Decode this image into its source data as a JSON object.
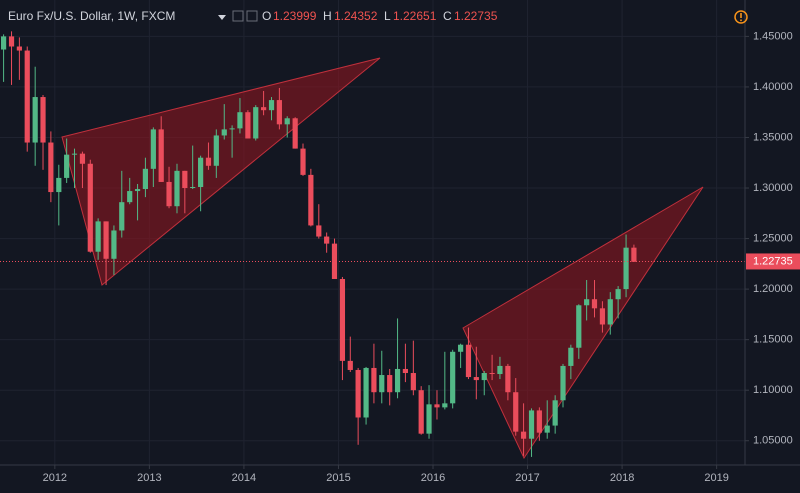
{
  "chart_data": {
    "type": "candlestick",
    "header": {
      "symbol": "Euro Fx/U.S. Dollar, 1W, FXCM",
      "o_label": "O",
      "open": 1.23999,
      "h_label": "H",
      "high": 1.24352,
      "l_label": "L",
      "low": 1.22651,
      "c_label": "C",
      "close": 1.22735
    },
    "up_color": "#53b987",
    "down_color": "#eb4d5c",
    "grid": true,
    "xlim": [
      2011.42,
      2019.3
    ],
    "xticks": [
      2012,
      2013,
      2014,
      2015,
      2016,
      2017,
      2018,
      2019
    ],
    "ylim": [
      1.026,
      1.486
    ],
    "yticks": [
      {
        "value": 1.05,
        "label": "1.05000"
      },
      {
        "value": 1.1,
        "label": "1.10000"
      },
      {
        "value": 1.15,
        "label": "1.15000"
      },
      {
        "value": 1.2,
        "label": "1.20000"
      },
      {
        "value": 1.25,
        "label": "1.25000"
      },
      {
        "value": 1.3,
        "label": "1.30000"
      },
      {
        "value": 1.35,
        "label": "1.35000"
      },
      {
        "value": 1.4,
        "label": "1.40000"
      },
      {
        "value": 1.45,
        "label": "1.45000"
      }
    ],
    "x": [
      2011.458,
      2011.542,
      2011.625,
      2011.708,
      2011.792,
      2011.875,
      2011.958,
      2012.042,
      2012.125,
      2012.208,
      2012.292,
      2012.375,
      2012.458,
      2012.542,
      2012.625,
      2012.708,
      2012.792,
      2012.875,
      2012.958,
      2013.042,
      2013.125,
      2013.208,
      2013.292,
      2013.375,
      2013.458,
      2013.542,
      2013.625,
      2013.708,
      2013.792,
      2013.875,
      2013.958,
      2014.042,
      2014.125,
      2014.208,
      2014.292,
      2014.375,
      2014.458,
      2014.542,
      2014.625,
      2014.708,
      2014.792,
      2014.875,
      2014.958,
      2015.042,
      2015.125,
      2015.208,
      2015.292,
      2015.375,
      2015.458,
      2015.542,
      2015.625,
      2015.708,
      2015.792,
      2015.875,
      2015.958,
      2016.042,
      2016.125,
      2016.208,
      2016.292,
      2016.375,
      2016.458,
      2016.542,
      2016.625,
      2016.708,
      2016.792,
      2016.875,
      2016.958,
      2017.042,
      2017.125,
      2017.208,
      2017.292,
      2017.375,
      2017.458,
      2017.542,
      2017.625,
      2017.708,
      2017.792,
      2017.875,
      2017.958,
      2018.042,
      2018.125
    ],
    "open": [
      1.437,
      1.45,
      1.44,
      1.436,
      1.345,
      1.39,
      1.345,
      1.296,
      1.31,
      1.333,
      1.334,
      1.324,
      1.237,
      1.267,
      1.23,
      1.258,
      1.286,
      1.297,
      1.299,
      1.319,
      1.358,
      1.306,
      1.282,
      1.317,
      1.3,
      1.301,
      1.33,
      1.322,
      1.352,
      1.358,
      1.359,
      1.375,
      1.349,
      1.38,
      1.377,
      1.387,
      1.363,
      1.369,
      1.339,
      1.313,
      1.263,
      1.252,
      1.245,
      1.21,
      1.129,
      1.12,
      1.073,
      1.122,
      1.098,
      1.115,
      1.098,
      1.121,
      1.117,
      1.1,
      1.057,
      1.086,
      1.083,
      1.087,
      1.138,
      1.145,
      1.113,
      1.11,
      1.117,
      1.116,
      1.124,
      1.098,
      1.059,
      1.052,
      1.08,
      1.058,
      1.065,
      1.09,
      1.124,
      1.142,
      1.184,
      1.19,
      1.181,
      1.165,
      1.19,
      1.2,
      1.241
    ],
    "high": [
      1.452,
      1.455,
      1.449,
      1.44,
      1.42,
      1.392,
      1.356,
      1.323,
      1.349,
      1.339,
      1.336,
      1.328,
      1.27,
      1.267,
      1.263,
      1.317,
      1.31,
      1.304,
      1.33,
      1.36,
      1.371,
      1.321,
      1.324,
      1.317,
      1.342,
      1.332,
      1.345,
      1.358,
      1.383,
      1.362,
      1.389,
      1.377,
      1.382,
      1.396,
      1.39,
      1.399,
      1.371,
      1.37,
      1.344,
      1.319,
      1.284,
      1.256,
      1.25,
      1.212,
      1.153,
      1.122,
      1.123,
      1.146,
      1.139,
      1.121,
      1.171,
      1.146,
      1.149,
      1.104,
      1.105,
      1.1,
      1.138,
      1.14,
      1.146,
      1.162,
      1.143,
      1.119,
      1.135,
      1.133,
      1.126,
      1.112,
      1.087,
      1.082,
      1.083,
      1.09,
      1.095,
      1.126,
      1.145,
      1.185,
      1.209,
      1.209,
      1.188,
      1.197,
      1.203,
      1.254,
      1.244
    ],
    "low": [
      1.405,
      1.402,
      1.407,
      1.336,
      1.322,
      1.318,
      1.286,
      1.263,
      1.305,
      1.3,
      1.3,
      1.236,
      1.229,
      1.204,
      1.214,
      1.251,
      1.284,
      1.268,
      1.291,
      1.301,
      1.306,
      1.28,
      1.275,
      1.275,
      1.299,
      1.277,
      1.318,
      1.31,
      1.348,
      1.33,
      1.354,
      1.349,
      1.347,
      1.372,
      1.367,
      1.358,
      1.35,
      1.339,
      1.312,
      1.262,
      1.25,
      1.236,
      1.21,
      1.11,
      1.118,
      1.046,
      1.066,
      1.087,
      1.087,
      1.085,
      1.092,
      1.108,
      1.095,
      1.056,
      1.052,
      1.071,
      1.081,
      1.082,
      1.122,
      1.111,
      1.091,
      1.095,
      1.11,
      1.111,
      1.09,
      1.055,
      1.035,
      1.034,
      1.05,
      1.052,
      1.057,
      1.083,
      1.111,
      1.131,
      1.169,
      1.172,
      1.157,
      1.155,
      1.171,
      1.192,
      1.227
    ],
    "close": [
      1.45,
      1.44,
      1.436,
      1.345,
      1.39,
      1.345,
      1.296,
      1.31,
      1.333,
      1.334,
      1.324,
      1.237,
      1.267,
      1.23,
      1.258,
      1.286,
      1.297,
      1.299,
      1.319,
      1.358,
      1.306,
      1.282,
      1.317,
      1.3,
      1.301,
      1.33,
      1.322,
      1.352,
      1.358,
      1.359,
      1.375,
      1.349,
      1.38,
      1.377,
      1.387,
      1.363,
      1.369,
      1.339,
      1.313,
      1.263,
      1.252,
      1.245,
      1.21,
      1.129,
      1.12,
      1.073,
      1.122,
      1.098,
      1.115,
      1.098,
      1.121,
      1.117,
      1.1,
      1.057,
      1.086,
      1.083,
      1.087,
      1.138,
      1.145,
      1.113,
      1.11,
      1.117,
      1.116,
      1.124,
      1.098,
      1.059,
      1.052,
      1.08,
      1.058,
      1.065,
      1.09,
      1.124,
      1.142,
      1.184,
      1.19,
      1.181,
      1.165,
      1.19,
      1.2,
      1.241,
      1.227
    ]
  }
}
